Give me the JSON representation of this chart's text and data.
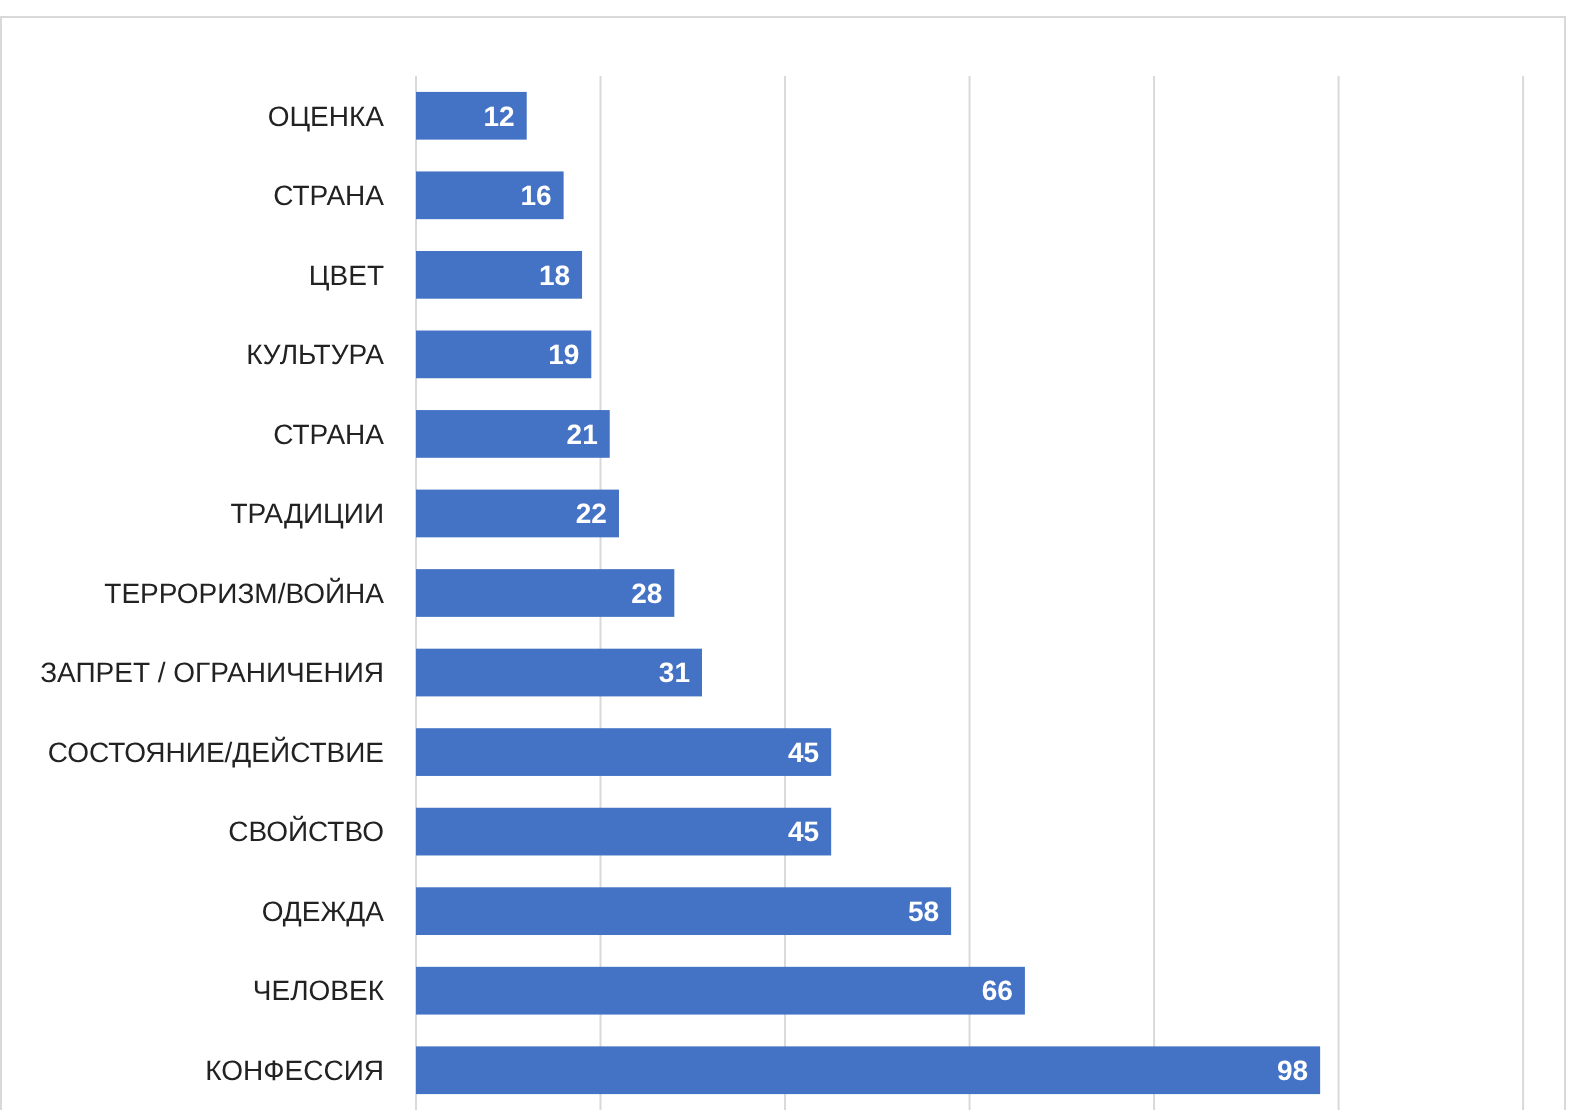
{
  "chart_data": {
    "type": "bar",
    "orientation": "horizontal",
    "categories": [
      "ОЦЕНКА",
      "СТРАНА",
      "ЦВЕТ",
      "КУЛЬТУРА",
      "СТРАНА",
      "ТРАДИЦИИ",
      "ТЕРРОРИЗМ/ВОЙНА",
      "ЗАПРЕТ / ОГРАНИЧЕНИЯ",
      "СОСТОЯНИЕ/ДЕЙСТВИЕ",
      "СВОЙСТВО",
      "ОДЕЖДА",
      "ЧЕЛОВЕК",
      "КОНФЕССИЯ"
    ],
    "values": [
      12,
      16,
      18,
      19,
      21,
      22,
      28,
      31,
      45,
      45,
      58,
      66,
      98
    ],
    "color": "#4472c4",
    "data_labels": true,
    "grid": "x",
    "tick_labels": "y",
    "xlim": [
      0,
      124
    ],
    "xticks": [
      {
        "value": 0,
        "label": null
      },
      {
        "value": 20,
        "label": null
      },
      {
        "value": 40,
        "label": null
      },
      {
        "value": 60,
        "label": null
      },
      {
        "value": 80,
        "label": null
      },
      {
        "value": 100,
        "label": null
      },
      {
        "value": 120,
        "label": null
      }
    ]
  }
}
